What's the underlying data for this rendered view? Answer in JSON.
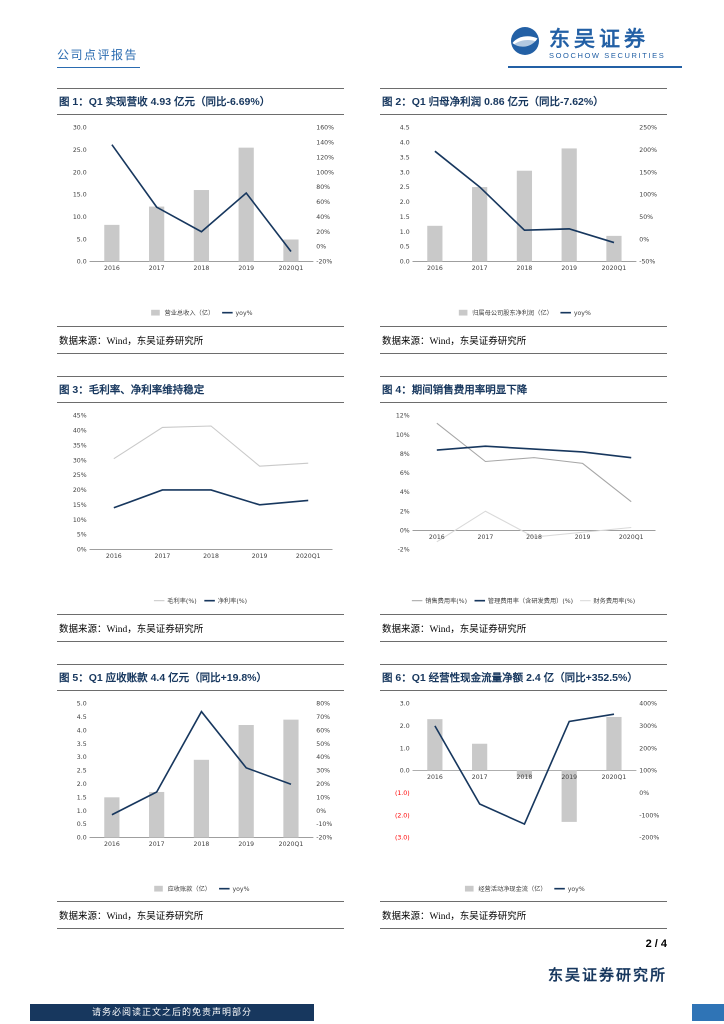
{
  "page": {
    "report_type": "公司点评报告",
    "page_number": "2 / 4",
    "institute": "东吴证券研究所",
    "disclaimer": "请务必阅读正文之后的免责声明部分",
    "source_note": "数据来源：Wind，东吴证券研究所",
    "brand": {
      "name_cn": "东吴证券",
      "name_en": "SOOCHOW SECURITIES"
    }
  },
  "palette": {
    "navy": "#17375e",
    "bar_gray": "#c9c9c9",
    "mid_gray": "#a6a6a6",
    "light_gray": "#d9d9d9",
    "brand_blue": "#2360a5",
    "negative_red": "#ff0000",
    "accent_blue": "#2f74b6"
  },
  "chart_data": [
    {
      "type": "bar",
      "title": "图 1：Q1 实现营收 4.93 亿元（同比-6.69%）",
      "categories": [
        "2016",
        "2017",
        "2018",
        "2019",
        "2020Q1"
      ],
      "left_axis": {
        "min": 0,
        "max": 30,
        "step": 5,
        "format": "1dp"
      },
      "right_axis": {
        "min": -20,
        "max": 160,
        "step": 20,
        "format": "pct"
      },
      "series": [
        {
          "name": "营业总收入（亿）",
          "kind": "bar",
          "axis": "left",
          "color": "#c9c9c9",
          "values": [
            8.2,
            12.3,
            16.0,
            25.5,
            4.93
          ]
        },
        {
          "name": "yoy%",
          "kind": "line",
          "axis": "right",
          "color": "#17375e",
          "emph": true,
          "values": [
            137,
            53,
            20,
            72,
            -6.69
          ]
        }
      ]
    },
    {
      "type": "bar",
      "title": "图 2：Q1 归母净利润 0.86 亿元（同比-7.62%）",
      "categories": [
        "2016",
        "2017",
        "2018",
        "2019",
        "2020Q1"
      ],
      "left_axis": {
        "min": 0,
        "max": 4.5,
        "step": 0.5,
        "format": "1dp"
      },
      "right_axis": {
        "min": -50,
        "max": 250,
        "step": 50,
        "format": "pct"
      },
      "series": [
        {
          "name": "归属母公司股东净利润（亿）",
          "kind": "bar",
          "axis": "left",
          "color": "#c9c9c9",
          "values": [
            1.2,
            2.5,
            3.05,
            3.8,
            0.86
          ]
        },
        {
          "name": "yoy%",
          "kind": "line",
          "axis": "right",
          "color": "#17375e",
          "emph": true,
          "values": [
            197,
            117,
            20,
            23,
            -7.62
          ]
        }
      ]
    },
    {
      "type": "line",
      "title": "图 3：毛利率、净利率维持稳定",
      "categories": [
        "2016",
        "2017",
        "2018",
        "2019",
        "2020Q1"
      ],
      "left_axis": {
        "min": 0,
        "max": 45,
        "step": 5,
        "format": "pct"
      },
      "series": [
        {
          "name": "毛利率(%)",
          "kind": "line",
          "axis": "left",
          "color": "#c9c9c9",
          "values": [
            30.5,
            41,
            41.5,
            28,
            29
          ]
        },
        {
          "name": "净利率(%)",
          "kind": "line",
          "axis": "left",
          "color": "#17375e",
          "emph": true,
          "values": [
            14,
            20,
            20,
            15,
            16.5
          ]
        }
      ]
    },
    {
      "type": "line",
      "title": "图 4：期间销售费用率明显下降",
      "categories": [
        "2016",
        "2017",
        "2018",
        "2019",
        "2020Q1"
      ],
      "left_axis": {
        "min": -2,
        "max": 12,
        "step": 2,
        "format": "pct"
      },
      "series": [
        {
          "name": "销售费用率(%)",
          "kind": "line",
          "axis": "left",
          "color": "#a6a6a6",
          "values": [
            11.2,
            7.2,
            7.6,
            7.0,
            3.0
          ]
        },
        {
          "name": "管理费用率（含研发费用）(%)",
          "kind": "line",
          "axis": "left",
          "color": "#17375e",
          "emph": true,
          "values": [
            8.4,
            8.8,
            8.5,
            8.2,
            7.6
          ]
        },
        {
          "name": "财务费用率(%)",
          "kind": "line",
          "axis": "left",
          "color": "#d9d9d9",
          "values": [
            -1.2,
            2.0,
            -0.7,
            -0.2,
            0.3
          ]
        }
      ]
    },
    {
      "type": "bar",
      "title": "图 5：Q1 应收账款 4.4 亿元（同比+19.8%）",
      "categories": [
        "2016",
        "2017",
        "2018",
        "2019",
        "2020Q1"
      ],
      "left_axis": {
        "min": 0,
        "max": 5,
        "step": 0.5,
        "format": "1dp"
      },
      "right_axis": {
        "min": -20,
        "max": 80,
        "step": 10,
        "format": "pct"
      },
      "series": [
        {
          "name": "应收账款（亿）",
          "kind": "bar",
          "axis": "left",
          "color": "#c9c9c9",
          "values": [
            1.5,
            1.7,
            2.9,
            4.2,
            4.4
          ]
        },
        {
          "name": "yoy%",
          "kind": "line",
          "axis": "right",
          "color": "#17375e",
          "emph": true,
          "values": [
            -3,
            14,
            74,
            32,
            19.8
          ]
        }
      ]
    },
    {
      "type": "bar",
      "title": "图 6：Q1 经营性现金流量净额 2.4 亿（同比+352.5%）",
      "categories": [
        "2016",
        "2017",
        "2018",
        "2019",
        "2020Q1"
      ],
      "left_axis": {
        "min": -3,
        "max": 3,
        "step": 1,
        "format": "paren"
      },
      "right_axis": {
        "min": -200,
        "max": 400,
        "step": 100,
        "format": "pct"
      },
      "series": [
        {
          "name": "经营活动净现金流（亿）",
          "kind": "bar",
          "axis": "left",
          "color": "#c9c9c9",
          "values": [
            2.3,
            1.2,
            -0.3,
            -2.3,
            2.4
          ]
        },
        {
          "name": "yoy%",
          "kind": "line",
          "axis": "right",
          "color": "#17375e",
          "emph": true,
          "values": [
            300,
            -50,
            -140,
            320,
            352.5
          ]
        }
      ]
    }
  ]
}
